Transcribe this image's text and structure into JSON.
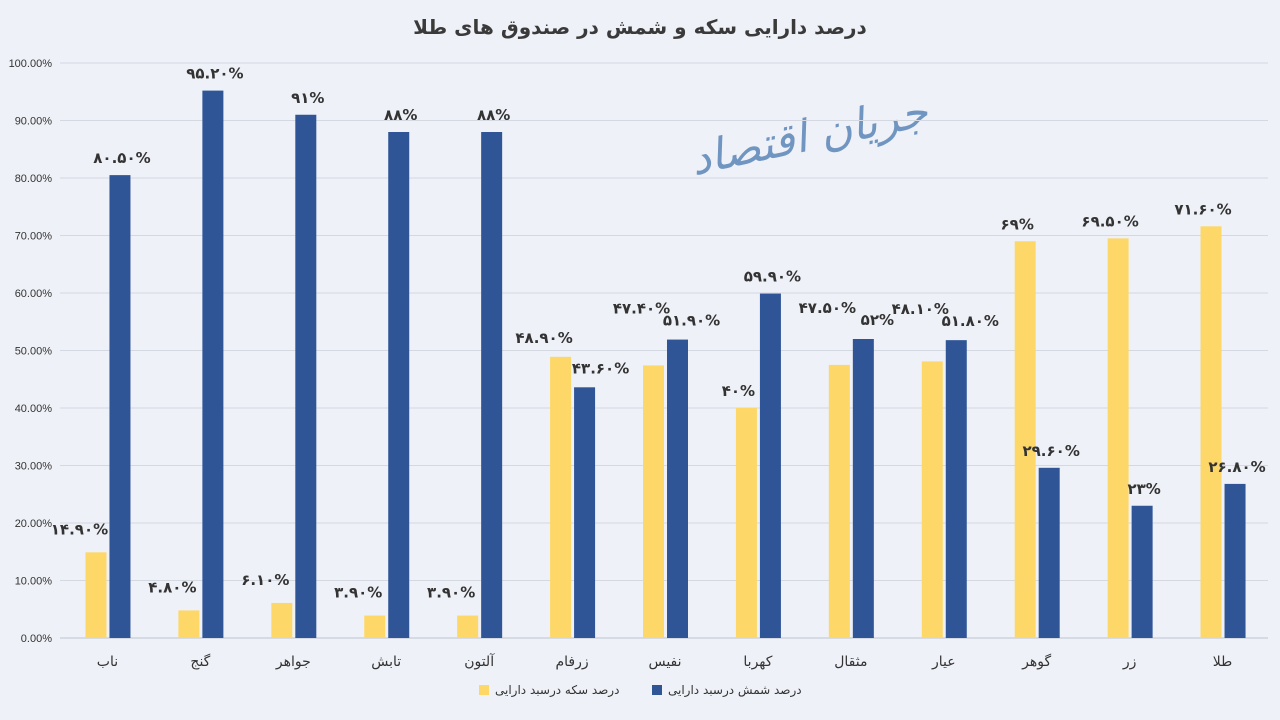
{
  "watermark": "جریان اقتصاد",
  "colors": {
    "coin": "#fdd868",
    "bullion": "#2f5597",
    "grid": "#d4d8e0",
    "axis": "#bfc4cc"
  },
  "chart_data": {
    "type": "bar",
    "title": "درصد دارایی سکه و شمش در صندوق های طلا",
    "xlabel": "",
    "ylabel": "",
    "ylim": [
      0,
      100
    ],
    "yticks": [
      "0.00%",
      "10.00%",
      "20.00%",
      "30.00%",
      "40.00%",
      "50.00%",
      "60.00%",
      "70.00%",
      "80.00%",
      "90.00%",
      "100.00%"
    ],
    "grid": true,
    "legend_position": "bottom",
    "categories": [
      "ناب",
      "گنج",
      "جواهر",
      "تابش",
      "آلتون",
      "زرفام",
      "نفیس",
      "کهربا",
      "مثقال",
      "عیار",
      "گوهر",
      "زر",
      "طلا"
    ],
    "series": [
      {
        "name": "درصد سکه درسبد دارایی",
        "color": "#fdd868",
        "values": [
          14.9,
          4.8,
          6.1,
          3.9,
          3.9,
          48.9,
          47.4,
          40,
          47.5,
          48.1,
          69,
          69.5,
          71.6
        ],
        "labels": [
          "۱۴.۹۰%",
          "۴.۸۰%",
          "۶.۱۰%",
          "۳.۹۰%",
          "۳.۹۰%",
          "۴۸.۹۰%",
          "۴۷.۴۰%",
          "۴۰%",
          "۴۷.۵۰%",
          "۴۸.۱۰%",
          "۶۹%",
          "۶۹.۵۰%",
          "۷۱.۶۰%"
        ]
      },
      {
        "name": "درصد شمش درسبد دارایی",
        "color": "#2f5597",
        "values": [
          80.5,
          95.2,
          91,
          88,
          88,
          43.6,
          51.9,
          59.9,
          52,
          51.8,
          29.6,
          23,
          26.8
        ],
        "labels": [
          "۸۰.۵۰%",
          "۹۵.۲۰%",
          "۹۱%",
          "۸۸%",
          "۸۸%",
          "۴۳.۶۰%",
          "۵۱.۹۰%",
          "۵۹.۹۰%",
          "۵۲%",
          "۵۱.۸۰%",
          "۲۹.۶۰%",
          "۲۳%",
          "۲۶.۸۰%"
        ]
      }
    ]
  }
}
